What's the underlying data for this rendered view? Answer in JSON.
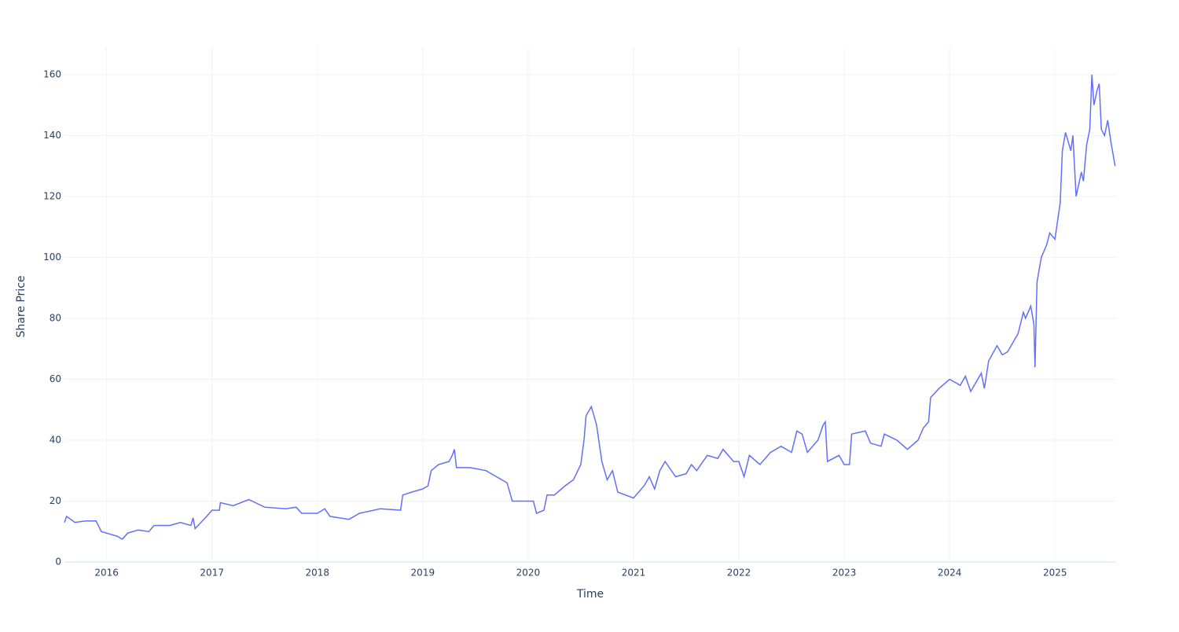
{
  "chart_data": {
    "type": "line",
    "xlabel": "Time",
    "ylabel": "Share Price",
    "x": [
      2015.6,
      2015.62,
      2015.7,
      2015.8,
      2015.9,
      2015.95,
      2016.0,
      2016.1,
      2016.15,
      2016.2,
      2016.3,
      2016.4,
      2016.45,
      2016.6,
      2016.7,
      2016.8,
      2016.82,
      2016.84,
      2016.95,
      2017.0,
      2017.07,
      2017.08,
      2017.2,
      2017.35,
      2017.5,
      2017.7,
      2017.8,
      2017.85,
      2018.0,
      2018.07,
      2018.12,
      2018.3,
      2018.4,
      2018.6,
      2018.79,
      2018.81,
      2018.9,
      2019.0,
      2019.05,
      2019.08,
      2019.15,
      2019.25,
      2019.28,
      2019.3,
      2019.32,
      2019.45,
      2019.6,
      2019.7,
      2019.8,
      2019.85,
      2020.0,
      2020.05,
      2020.08,
      2020.15,
      2020.18,
      2020.25,
      2020.35,
      2020.43,
      2020.5,
      2020.53,
      2020.55,
      2020.6,
      2020.65,
      2020.7,
      2020.75,
      2020.8,
      2020.85,
      2021.0,
      2021.1,
      2021.15,
      2021.2,
      2021.25,
      2021.3,
      2021.4,
      2021.5,
      2021.55,
      2021.6,
      2021.7,
      2021.8,
      2021.85,
      2021.95,
      2022.0,
      2022.05,
      2022.1,
      2022.2,
      2022.3,
      2022.4,
      2022.5,
      2022.55,
      2022.6,
      2022.65,
      2022.75,
      2022.8,
      2022.82,
      2022.84,
      2022.95,
      2023.0,
      2023.05,
      2023.07,
      2023.2,
      2023.25,
      2023.35,
      2023.38,
      2023.5,
      2023.6,
      2023.7,
      2023.75,
      2023.8,
      2023.82,
      2023.9,
      2024.0,
      2024.1,
      2024.15,
      2024.2,
      2024.3,
      2024.33,
      2024.37,
      2024.45,
      2024.5,
      2024.55,
      2024.6,
      2024.65,
      2024.7,
      2024.72,
      2024.77,
      2024.8,
      2024.81,
      2024.83,
      2024.87,
      2024.92,
      2024.95,
      2025.0,
      2025.05,
      2025.07,
      2025.1,
      2025.15,
      2025.17,
      2025.2,
      2025.25,
      2025.27,
      2025.3,
      2025.33,
      2025.35,
      2025.37,
      2025.4,
      2025.42,
      2025.44,
      2025.47,
      2025.5,
      2025.53,
      2025.57
    ],
    "series": [
      {
        "name": "Share Price",
        "color": "#636efa",
        "values": [
          13,
          15,
          13,
          13.5,
          13.5,
          10,
          9.5,
          8.5,
          7.5,
          9.5,
          10.5,
          10,
          12,
          12,
          13,
          12,
          14.5,
          11,
          15,
          17,
          17,
          19.5,
          18.5,
          20.5,
          18,
          17.5,
          18,
          16,
          16,
          17.5,
          15,
          14,
          16,
          17.5,
          17,
          22,
          23,
          24,
          25,
          30,
          32,
          33,
          35,
          37,
          31,
          31,
          30,
          28,
          26,
          20,
          20,
          20,
          16,
          17,
          22,
          22,
          25,
          27,
          32,
          40,
          48,
          51,
          45,
          33,
          27,
          30,
          23,
          21,
          25,
          28,
          24,
          30,
          33,
          28,
          29,
          32,
          30,
          35,
          34,
          37,
          33,
          33,
          28,
          35,
          32,
          36,
          38,
          36,
          43,
          42,
          36,
          40,
          45,
          46,
          33,
          35,
          32,
          32,
          42,
          43,
          39,
          38,
          42,
          40,
          37,
          40,
          44,
          46,
          54,
          57,
          60,
          58,
          61,
          56,
          62,
          57,
          66,
          71,
          68,
          69,
          72,
          75,
          82,
          80,
          84,
          78,
          64,
          92,
          100,
          104,
          108,
          106,
          118,
          135,
          141,
          135,
          140,
          120,
          128,
          125,
          137,
          142,
          160,
          150,
          155,
          157,
          142,
          140,
          145,
          138,
          130
        ]
      }
    ],
    "xlim": [
      2015.6,
      2025.58
    ],
    "xticks": [
      2016,
      2017,
      2018,
      2019,
      2020,
      2021,
      2022,
      2023,
      2024,
      2025
    ],
    "ylim": [
      0,
      169
    ],
    "yticks": [
      0,
      20,
      40,
      60,
      80,
      100,
      120,
      140,
      160
    ],
    "grid": true
  }
}
